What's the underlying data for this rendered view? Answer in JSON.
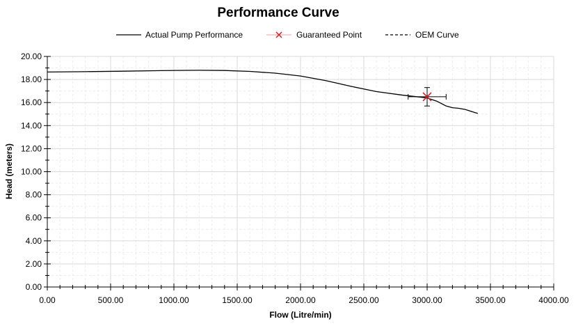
{
  "chart_data": {
    "type": "line",
    "title": "Performance Curve",
    "xlabel": "Flow (Litre/min)",
    "ylabel": "Head (meters)",
    "xlim": [
      0,
      4000
    ],
    "ylim": [
      0,
      20
    ],
    "x_major_step": 500,
    "y_major_step": 2,
    "x_tick_labels": [
      "0.00",
      "500.00",
      "1000.00",
      "1500.00",
      "2000.00",
      "2500.00",
      "3000.00",
      "3500.00",
      "4000.00"
    ],
    "y_tick_labels": [
      "0.00",
      "2.00",
      "4.00",
      "6.00",
      "8.00",
      "10.00",
      "12.00",
      "14.00",
      "16.00",
      "18.00",
      "20.00"
    ],
    "grid": true,
    "legend_position": "top-center",
    "legend": [
      {
        "label": "Actual Pump Performance",
        "style": "solid",
        "color": "#000000"
      },
      {
        "label": "Guaranteed Point",
        "style": "marker-x",
        "color": "#d0202c"
      },
      {
        "label": "OEM Curve",
        "style": "dashed",
        "color": "#000000"
      }
    ],
    "series": [
      {
        "name": "Actual Pump Performance",
        "color": "#000000",
        "points": [
          [
            0,
            18.65
          ],
          [
            300,
            18.68
          ],
          [
            600,
            18.72
          ],
          [
            900,
            18.77
          ],
          [
            1200,
            18.8
          ],
          [
            1400,
            18.78
          ],
          [
            1600,
            18.7
          ],
          [
            1800,
            18.55
          ],
          [
            2000,
            18.3
          ],
          [
            2200,
            17.9
          ],
          [
            2400,
            17.4
          ],
          [
            2600,
            16.95
          ],
          [
            2800,
            16.65
          ],
          [
            3000,
            16.4
          ],
          [
            3080,
            16.1
          ],
          [
            3150,
            15.7
          ],
          [
            3200,
            15.55
          ],
          [
            3250,
            15.5
          ],
          [
            3300,
            15.4
          ],
          [
            3400,
            15.05
          ]
        ]
      },
      {
        "name": "Guaranteed Point",
        "color": "#d0202c",
        "points": [
          [
            3000,
            16.5
          ]
        ],
        "error_x": [
          2850,
          3150
        ],
        "error_y": [
          15.7,
          17.3
        ]
      }
    ]
  }
}
